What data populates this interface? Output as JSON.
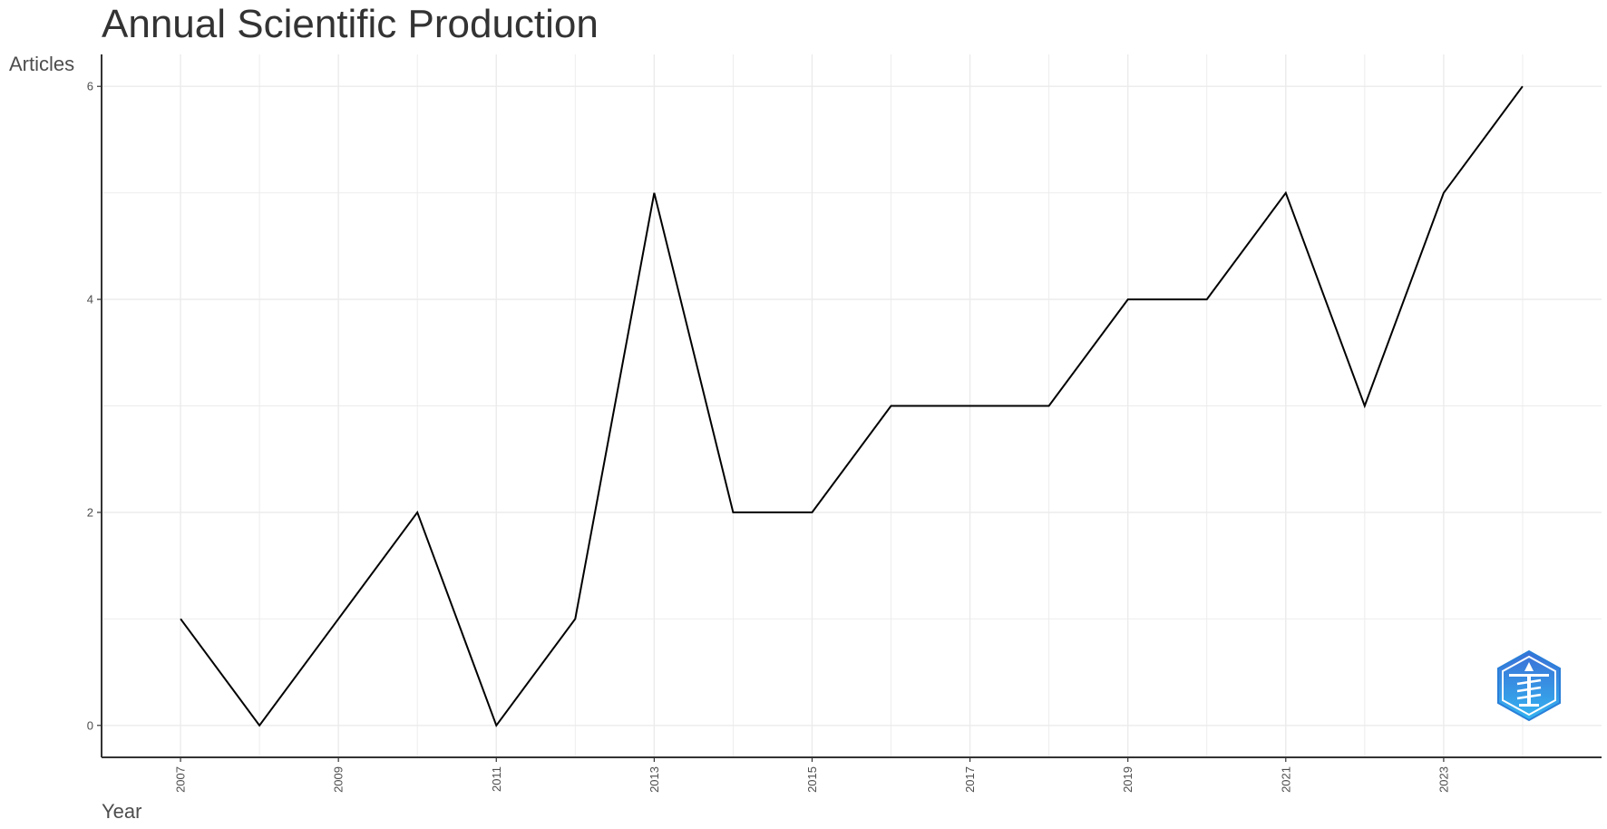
{
  "chart_data": {
    "type": "line",
    "title": "Annual Scientific Production",
    "xlabel": "Year",
    "ylabel": "Articles",
    "x": [
      2007,
      2008,
      2009,
      2010,
      2011,
      2012,
      2013,
      2014,
      2015,
      2016,
      2017,
      2018,
      2019,
      2020,
      2021,
      2022,
      2023,
      2024
    ],
    "series": [
      {
        "values": [
          1,
          0,
          1,
          2,
          0,
          1,
          5,
          2,
          2,
          3,
          3,
          3,
          4,
          4,
          5,
          3,
          5,
          6
        ]
      }
    ],
    "xlim": [
      2006,
      2025
    ],
    "ylim": [
      -0.3,
      6.3
    ],
    "x_ticks": [
      "2007",
      "2009",
      "2011",
      "2013",
      "2015",
      "2017",
      "2019",
      "2021",
      "2023"
    ],
    "y_ticks": [
      "0",
      "2",
      "4",
      "6"
    ],
    "grid": true,
    "line_color": "#000000",
    "grid_color": "#ebebeb"
  },
  "logo": {
    "icon": "bibliometrix-hexagon-icon",
    "color": "#2f8fe0"
  }
}
